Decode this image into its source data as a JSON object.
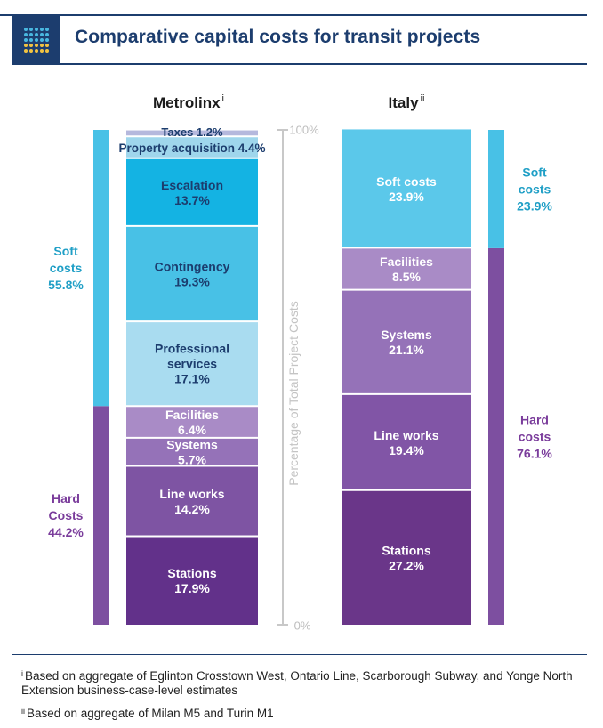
{
  "header": {
    "title": "Comparative capital costs for transit projects",
    "logo_icon": "grid-dots-icon"
  },
  "chart_data": {
    "type": "stacked-bar",
    "title": "Comparative capital costs for transit projects",
    "ylabel": "Percentage of Total Project Costs",
    "ylim": [
      0,
      100
    ],
    "ytick_top": "100%",
    "ytick_bottom": "0%",
    "bars": [
      {
        "name": "Metrolinx",
        "marker": "i",
        "segments": [
          {
            "label": "Stations",
            "value": 17.9,
            "display": "17.9%",
            "color": "#62318a"
          },
          {
            "label": "Line works",
            "value": 14.2,
            "display": "14.2%",
            "color": "#7e54a3"
          },
          {
            "label": "Systems",
            "value": 5.7,
            "display": "5.7%",
            "color": "#9572b8"
          },
          {
            "label": "Facilities",
            "value": 6.4,
            "display": "6.4%",
            "color": "#a98bc6"
          },
          {
            "label": "Professional services",
            "value": 17.1,
            "display": "17.1%",
            "color": "#a9dcf0"
          },
          {
            "label": "Contingency",
            "value": 19.3,
            "display": "19.3%",
            "color": "#48c1e6"
          },
          {
            "label": "Escalation",
            "value": 13.7,
            "display": "13.7%",
            "color": "#14b3e3"
          },
          {
            "label": "Property acquisition",
            "value": 4.4,
            "display": "4.4%",
            "color": "#9fd6ec"
          },
          {
            "label": "Taxes",
            "value": 1.2,
            "display": "1.2%",
            "color": "#b5b8dd"
          }
        ],
        "groups": [
          {
            "label": "Hard Costs",
            "value": 44.2,
            "display": "44.2%",
            "color": "#7d4fa0"
          },
          {
            "label": "Soft costs",
            "value": 55.8,
            "display": "55.8%",
            "color": "#48c1e6"
          }
        ]
      },
      {
        "name": "Italy",
        "marker": "ii",
        "segments": [
          {
            "label": "Stations",
            "value": 27.2,
            "display": "27.2%",
            "color": "#6a3689"
          },
          {
            "label": "Line works",
            "value": 19.4,
            "display": "19.4%",
            "color": "#8155a6"
          },
          {
            "label": "Systems",
            "value": 21.1,
            "display": "21.1%",
            "color": "#9572b8"
          },
          {
            "label": "Facilities",
            "value": 8.5,
            "display": "8.5%",
            "color": "#a98bc6"
          },
          {
            "label": "Soft costs",
            "value": 23.9,
            "display": "23.9%",
            "color": "#5bc8ea"
          }
        ],
        "groups": [
          {
            "label": "Hard costs",
            "value": 76.1,
            "display": "76.1%",
            "color": "#7d4fa0"
          },
          {
            "label": "Soft costs",
            "value": 23.9,
            "display": "23.9%",
            "color": "#48c1e6"
          }
        ]
      }
    ]
  },
  "footnotes": [
    {
      "marker": "i",
      "text": "Based on aggregate of Eglinton Crosstown West, Ontario Line, Scarborough Subway, and Yonge North Extension business-case-level estimates"
    },
    {
      "marker": "ii",
      "text": "Based on aggregate of Milan M5 and Turin M1"
    }
  ]
}
